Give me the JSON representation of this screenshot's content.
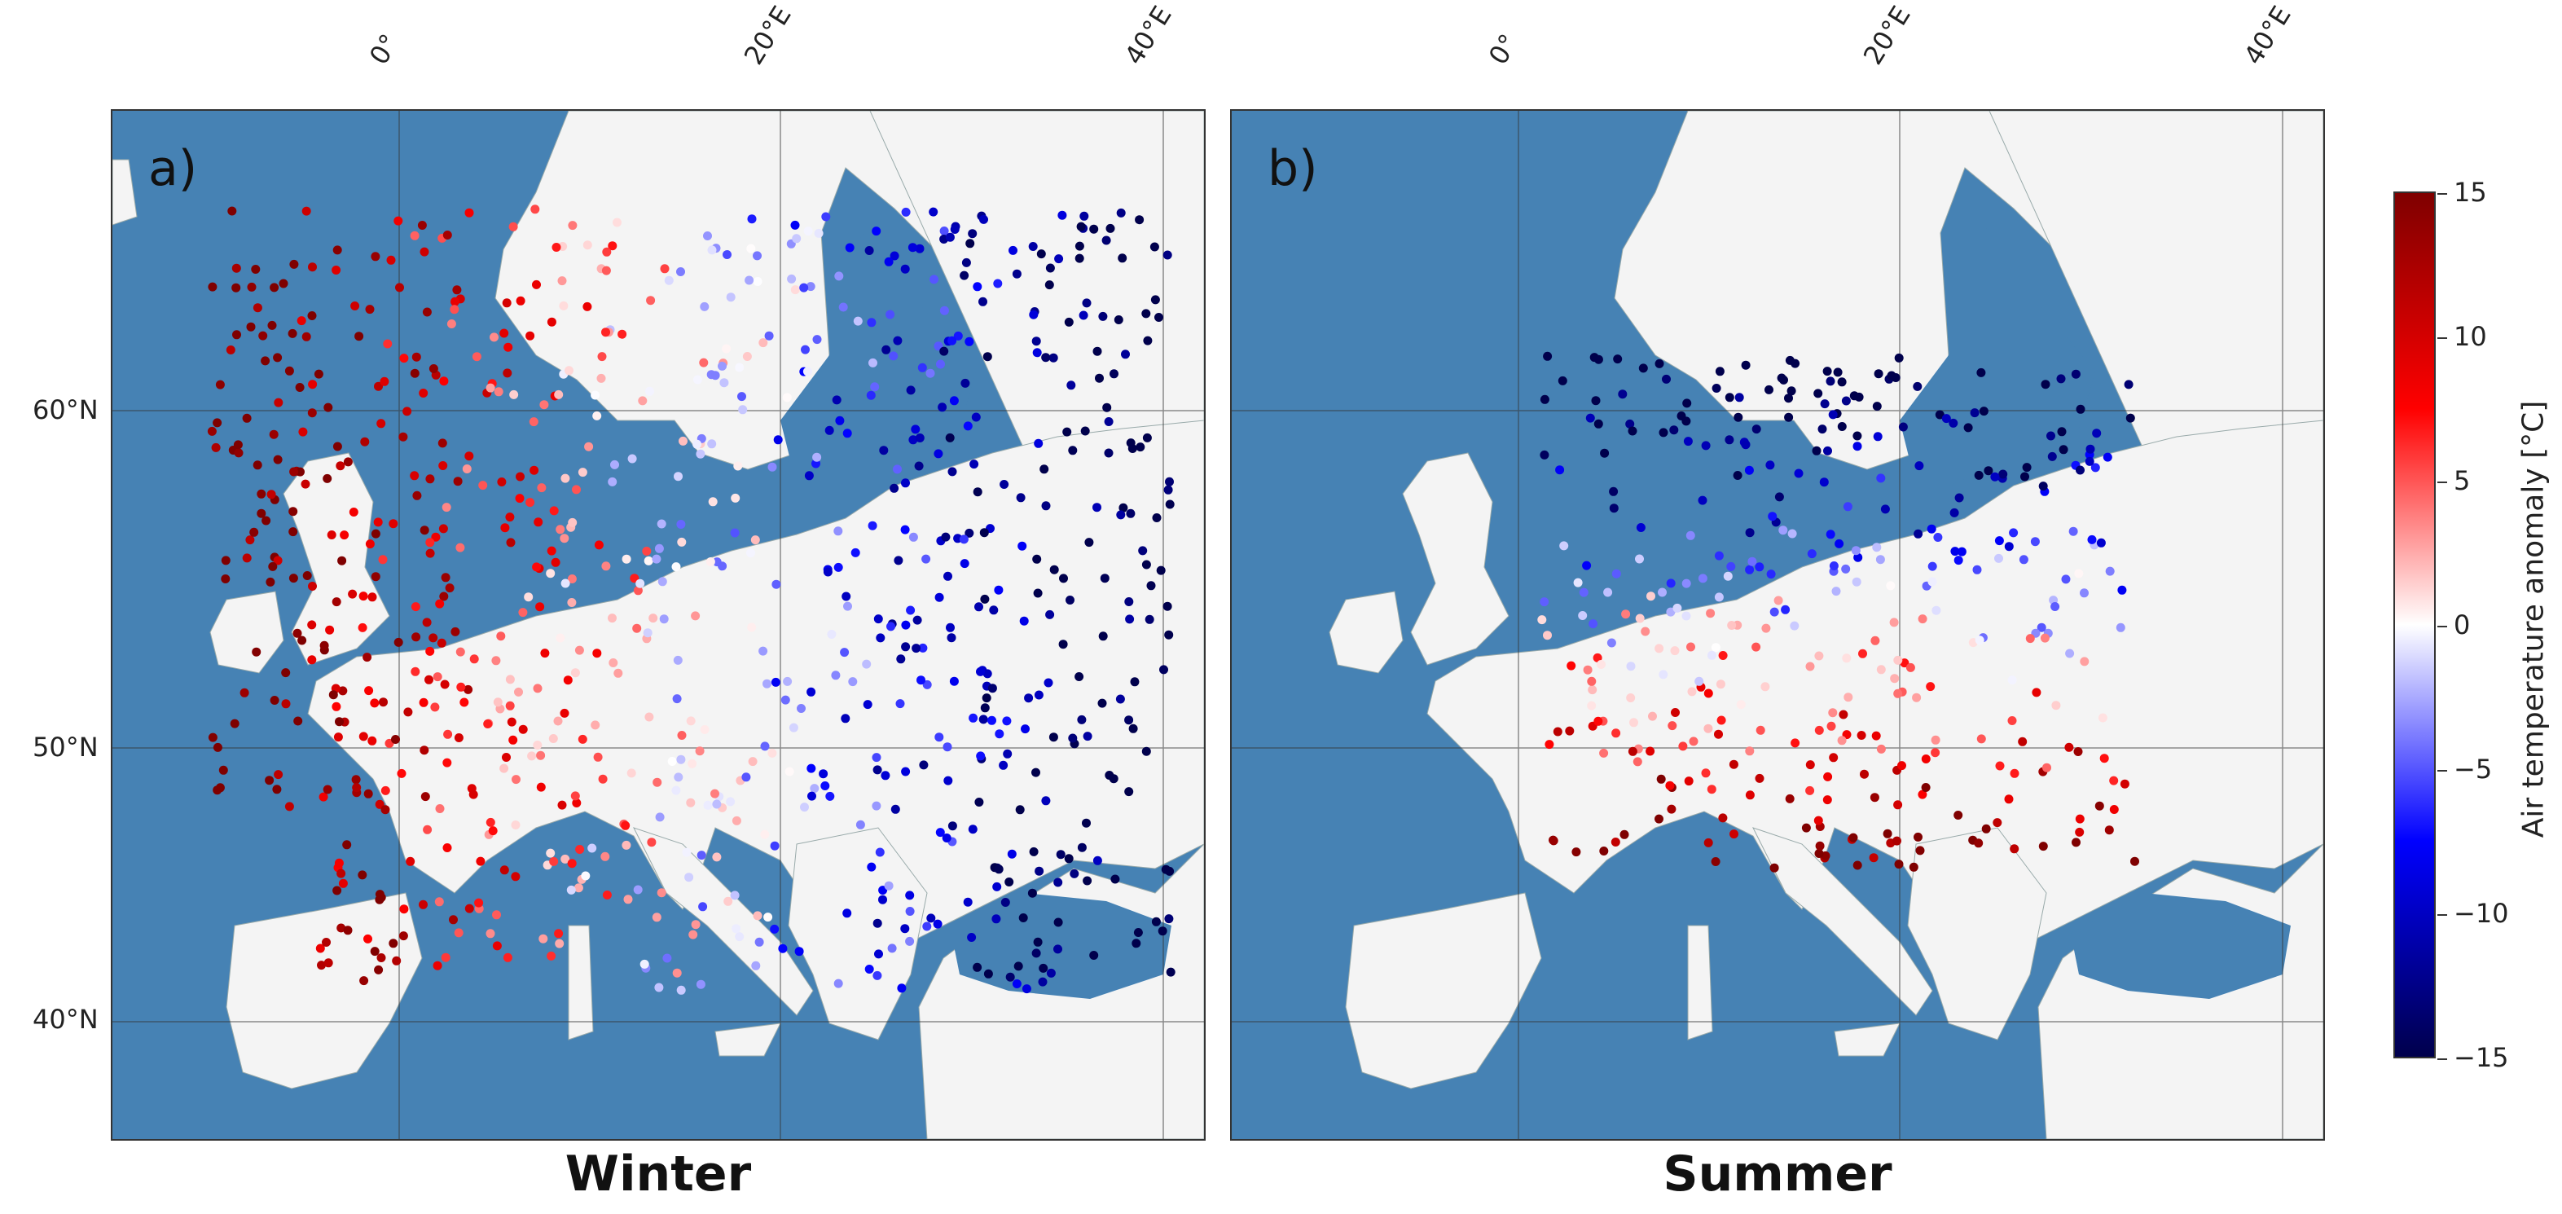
{
  "colors": {
    "sea": "#4682b4",
    "land": "#f4f4f4",
    "border": "#555555",
    "cmap_low": "#00004c",
    "cmap_mid": "#ffffff",
    "cmap_high": "#7f0000"
  },
  "panels": [
    {
      "letter": "a)",
      "season": "Winter"
    },
    {
      "letter": "b)",
      "season": "Summer"
    }
  ],
  "axes": {
    "lon_ticks": [
      "0°",
      "20°E",
      "40°E"
    ],
    "lat_ticks": [
      "60°N",
      "50°N",
      "40°N"
    ]
  },
  "colorbar": {
    "label": "Air temperature anomaly [°C]",
    "range": [
      -15,
      15
    ],
    "ticks": [
      "15",
      "10",
      "5",
      "0",
      "−5",
      "−10",
      "−15"
    ]
  }
}
